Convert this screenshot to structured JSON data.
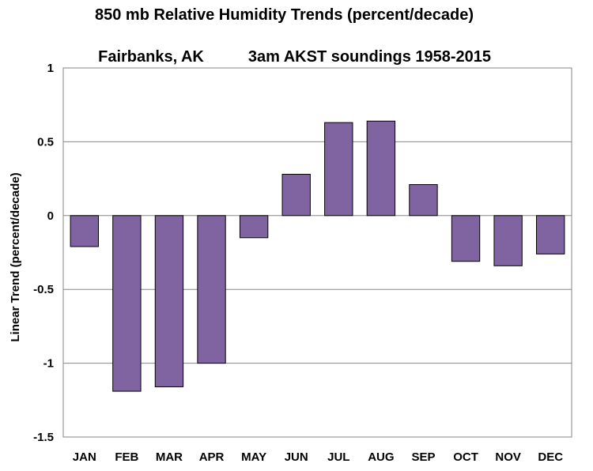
{
  "chart_data": {
    "type": "bar",
    "title_line1": "850 mb Relative Humidity Trends (percent/decade)",
    "title_line2_left": "Fairbanks, AK",
    "title_line2_right": "3am AKST soundings 1958-2015",
    "ylabel": "Linear Trend (percent/decade)",
    "xlabel": "",
    "categories": [
      "JAN",
      "FEB",
      "MAR",
      "APR",
      "MAY",
      "JUN",
      "JUL",
      "AUG",
      "SEP",
      "OCT",
      "NOV",
      "DEC"
    ],
    "values": [
      -0.21,
      -1.19,
      -1.16,
      -1.0,
      -0.15,
      0.28,
      0.63,
      0.64,
      0.21,
      -0.31,
      -0.34,
      -0.26
    ],
    "ylim": [
      -1.5,
      1
    ],
    "yticks": [
      1,
      0.5,
      0,
      -0.5,
      -1,
      -1.5
    ],
    "ytick_labels": [
      "1",
      "0.5",
      "0",
      "-0.5",
      "-1",
      "-1.5"
    ],
    "grid": true,
    "bar_color": "#8064a2",
    "bar_edge": "#000000"
  }
}
